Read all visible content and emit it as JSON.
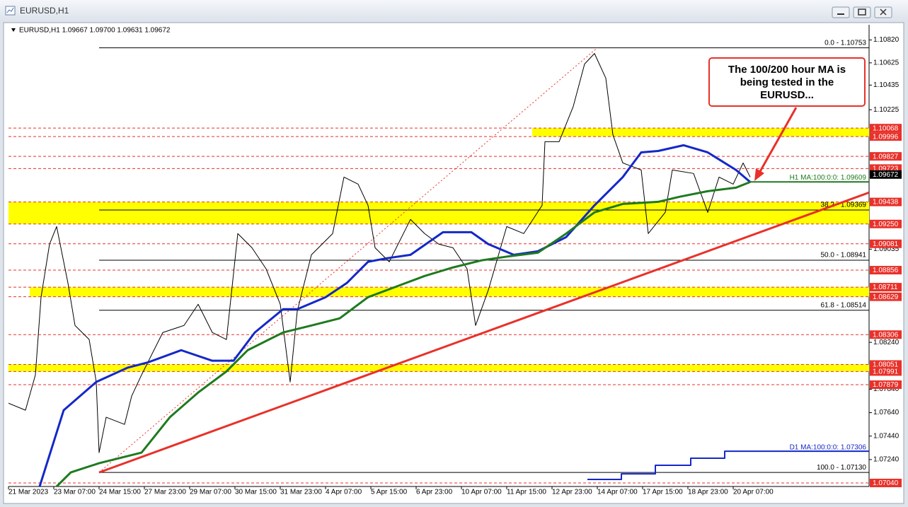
{
  "chart_data": {
    "type": "line",
    "title": "EURUSD,H1",
    "subtitle": "EURUSD,H1  1.09667 1.09700 1.09631 1.09672",
    "xlim": [
      0,
      608
    ],
    "ylim": [
      1.0701,
      1.1095
    ],
    "xticks": [
      {
        "value": 0,
        "label": "21 Mar 2023"
      },
      {
        "value": 32,
        "label": "23 Mar 07:00"
      },
      {
        "value": 64,
        "label": "24 Mar 15:00"
      },
      {
        "value": 96,
        "label": "27 Mar 23:00"
      },
      {
        "value": 128,
        "label": "29 Mar 07:00"
      },
      {
        "value": 160,
        "label": "30 Mar 15:00"
      },
      {
        "value": 192,
        "label": "31 Mar 23:00"
      },
      {
        "value": 224,
        "label": "4 Apr 07:00"
      },
      {
        "value": 256,
        "label": "5 Apr 15:00"
      },
      {
        "value": 288,
        "label": "6 Apr 23:00"
      },
      {
        "value": 320,
        "label": "10 Apr 07:00"
      },
      {
        "value": 352,
        "label": "11 Apr 15:00"
      },
      {
        "value": 384,
        "label": "12 Apr 23:00"
      },
      {
        "value": 416,
        "label": "14 Apr 07:00"
      },
      {
        "value": 448,
        "label": "17 Apr 15:00"
      },
      {
        "value": 480,
        "label": "18 Apr 23:00"
      },
      {
        "value": 512,
        "label": "20 Apr 07:00"
      }
    ],
    "yticks": [
      {
        "value": 1.1082,
        "label": "1.10820"
      },
      1.10625,
      1.10435,
      1.10225,
      1.09035,
      {
        "value": 1.0824,
        "label": "1.08240"
      },
      {
        "value": 1.0784,
        "label": "1.07840"
      },
      {
        "value": 1.0764,
        "label": "1.07640"
      },
      {
        "value": 1.0744,
        "label": "1.07440"
      },
      {
        "value": 1.0724,
        "label": "1.07240"
      }
    ],
    "grid": false,
    "levels": [
      1.10068,
      1.09996,
      1.09827,
      1.09723,
      1.09438,
      {
        "value": 1.0925,
        "label": "1.09250"
      },
      1.09081,
      1.08856,
      1.08711,
      1.08629,
      1.08306,
      1.08051,
      1.07991,
      1.07879,
      {
        "value": 1.0704,
        "label": "1.07040"
      }
    ],
    "level_color": "#e8312a",
    "zones": [
      {
        "from": 1.10068,
        "to": 1.09996,
        "start": 370
      },
      {
        "from": 1.09438,
        "to": 1.0925,
        "start": 0
      },
      {
        "from": 1.08711,
        "to": 1.08629,
        "start": 15
      },
      {
        "from": 1.08051,
        "to": 1.07991,
        "start": 0
      }
    ],
    "zone_color": "#ffff00",
    "fib_start": 64,
    "fib_levels": [
      {
        "value": 1.10753,
        "label": "0.0 - 1.10753"
      },
      {
        "value": 1.09369,
        "label": "38.2 - 1.09369"
      },
      {
        "value": 1.08941,
        "label": "50.0 - 1.08941"
      },
      {
        "value": 1.08514,
        "label": "61.8 - 1.08514"
      },
      {
        "value": 1.0713,
        "label": "100.0 - 1.07130"
      }
    ],
    "current_price": {
      "value": 1.09672,
      "label": "1.09672"
    },
    "ma_labels": [
      {
        "value": 1.09609,
        "start": 524,
        "label": "H1 MA:100:0:0: 1.09609",
        "color": "#1f7a1f"
      },
      {
        "value": 1.07306,
        "start": 608,
        "label": "D1 MA:100:0:0: 1.07306",
        "color": "#1428c8"
      }
    ],
    "series": [
      {
        "color": "#000000",
        "width": 1,
        "x": [
          0,
          12,
          19,
          23,
          29,
          34,
          42,
          47,
          57,
          62,
          64,
          69,
          82,
          87,
          94,
          109,
          124,
          134,
          144,
          154,
          162,
          172,
          182,
          192,
          199,
          204,
          214,
          229,
          237,
          247,
          254,
          259,
          269,
          284,
          294,
          304,
          314,
          324,
          330,
          339,
          352,
          364,
          377,
          379,
          389,
          399,
          407,
          414,
          422,
          427,
          434,
          447,
          452,
          464,
          469,
          484,
          494,
          502,
          512,
          519,
          524
        ],
        "values": [
          1.07721,
          1.07661,
          1.07962,
          1.08625,
          1.09078,
          1.09228,
          1.08746,
          1.08384,
          1.08264,
          1.07902,
          1.07299,
          1.07601,
          1.0754,
          1.07781,
          1.07962,
          1.08324,
          1.08384,
          1.08565,
          1.08324,
          1.08264,
          1.09168,
          1.09047,
          1.08867,
          1.08565,
          1.07902,
          1.08505,
          1.08987,
          1.09168,
          1.0965,
          1.0959,
          1.09409,
          1.09047,
          1.08927,
          1.09289,
          1.09168,
          1.09078,
          1.09047,
          1.08867,
          1.08384,
          1.08686,
          1.09228,
          1.09168,
          1.09409,
          1.09952,
          1.09952,
          1.10253,
          1.10615,
          1.10705,
          1.10494,
          1.10012,
          1.09771,
          1.09711,
          1.09168,
          1.09349,
          1.09711,
          1.09681,
          1.09349,
          1.0965,
          1.0959,
          1.09771,
          1.0965
        ]
      },
      {
        "color": "#1428c8",
        "width": 3,
        "x": [
          22,
          39,
          62,
          84,
          99,
          122,
          144,
          159,
          174,
          194,
          204,
          224,
          239,
          254,
          267,
          284,
          307,
          327,
          339,
          357,
          374,
          394,
          414,
          434,
          447,
          459,
          477,
          494,
          514,
          524
        ],
        "values": [
          1.0701,
          1.07661,
          1.07902,
          1.08023,
          1.08071,
          1.08173,
          1.08083,
          1.08083,
          1.08324,
          1.08523,
          1.08523,
          1.08625,
          1.08746,
          1.08927,
          1.08957,
          1.08987,
          1.0918,
          1.0918,
          1.09078,
          1.08987,
          1.09017,
          1.09138,
          1.09409,
          1.0965,
          1.09861,
          1.09873,
          1.09922,
          1.09861,
          1.09711,
          1.09608
        ]
      },
      {
        "color": "#1f7a1f",
        "width": 3,
        "x": [
          34,
          44,
          64,
          94,
          114,
          134,
          154,
          169,
          194,
          214,
          234,
          254,
          274,
          294,
          314,
          334,
          354,
          374,
          394,
          414,
          434,
          459,
          474,
          494,
          514,
          524
        ],
        "values": [
          1.0701,
          1.0713,
          1.07209,
          1.07299,
          1.07601,
          1.07812,
          1.07992,
          1.08173,
          1.08324,
          1.08384,
          1.08445,
          1.08625,
          1.08716,
          1.08806,
          1.08879,
          1.08939,
          1.08975,
          1.09005,
          1.09168,
          1.09349,
          1.09421,
          1.09439,
          1.09482,
          1.0953,
          1.0956,
          1.09608
        ]
      },
      {
        "color": "#e8312a",
        "width": 3,
        "x": [
          64,
          608
        ],
        "values": [
          1.0713,
          1.09518
        ]
      },
      {
        "color": "#1428c8",
        "width": 2,
        "x": [
          409,
          433,
          433,
          457,
          457,
          482,
          482,
          506,
          506,
          608
        ],
        "values": [
          1.0707,
          1.0707,
          1.07118,
          1.07118,
          1.07191,
          1.07191,
          1.07251,
          1.07251,
          1.07311,
          1.07311
        ]
      }
    ],
    "annotation": [
      "The 100/200 hour MA is",
      "being tested in the",
      "EURUSD..."
    ]
  }
}
